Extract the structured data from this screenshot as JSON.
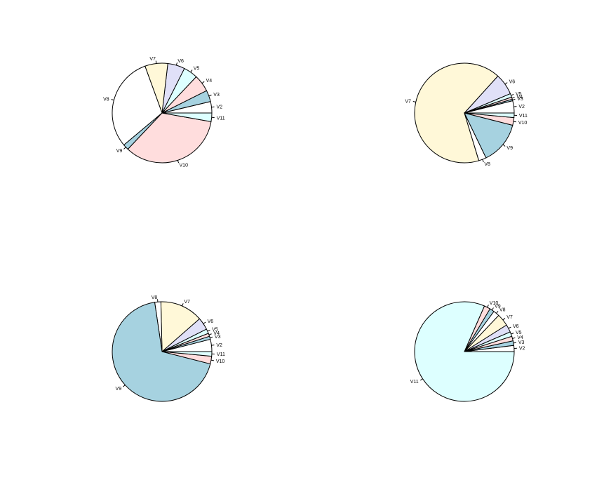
{
  "colors": {
    "palette": [
      "#FFFFFF",
      "#A6D2E0",
      "#FFDDDD",
      "#DDFFFF",
      "#E0E0F8",
      "#FFF8D8"
    ],
    "outline": "#000000",
    "background": "#FFFFFF"
  },
  "chart_data": [
    {
      "type": "pie",
      "title": "",
      "labels": [
        "V2",
        "V3",
        "V4",
        "V5",
        "V6",
        "V7",
        "V8",
        "V9",
        "V10",
        "V11"
      ],
      "values": [
        4,
        4,
        6,
        5,
        6,
        8,
        33,
        2,
        37,
        3
      ]
    },
    {
      "type": "pie",
      "title": "",
      "labels": [
        "V2",
        "V3",
        "V4",
        "V5",
        "V6",
        "V7",
        "V8",
        "V9",
        "V10",
        "V11"
      ],
      "values": [
        4,
        0.5,
        0.7,
        1.2,
        7,
        67,
        2.5,
        14,
        2.5,
        1.5
      ]
    },
    {
      "type": "pie",
      "title": "",
      "labels": [
        "V2",
        "V3",
        "V4",
        "V5",
        "V6",
        "V7",
        "V8",
        "V9",
        "V10",
        "V11"
      ],
      "values": [
        4,
        1,
        1,
        1.5,
        4,
        14,
        2,
        69,
        2.5,
        1.5
      ]
    },
    {
      "type": "pie",
      "title": "",
      "labels": [
        "V2",
        "V3",
        "V4",
        "V5",
        "V6",
        "V7",
        "V8",
        "V9",
        "V10",
        "V11"
      ],
      "values": [
        2,
        1.5,
        1.5,
        1.5,
        2.5,
        4,
        2,
        1.5,
        2,
        82
      ]
    }
  ]
}
